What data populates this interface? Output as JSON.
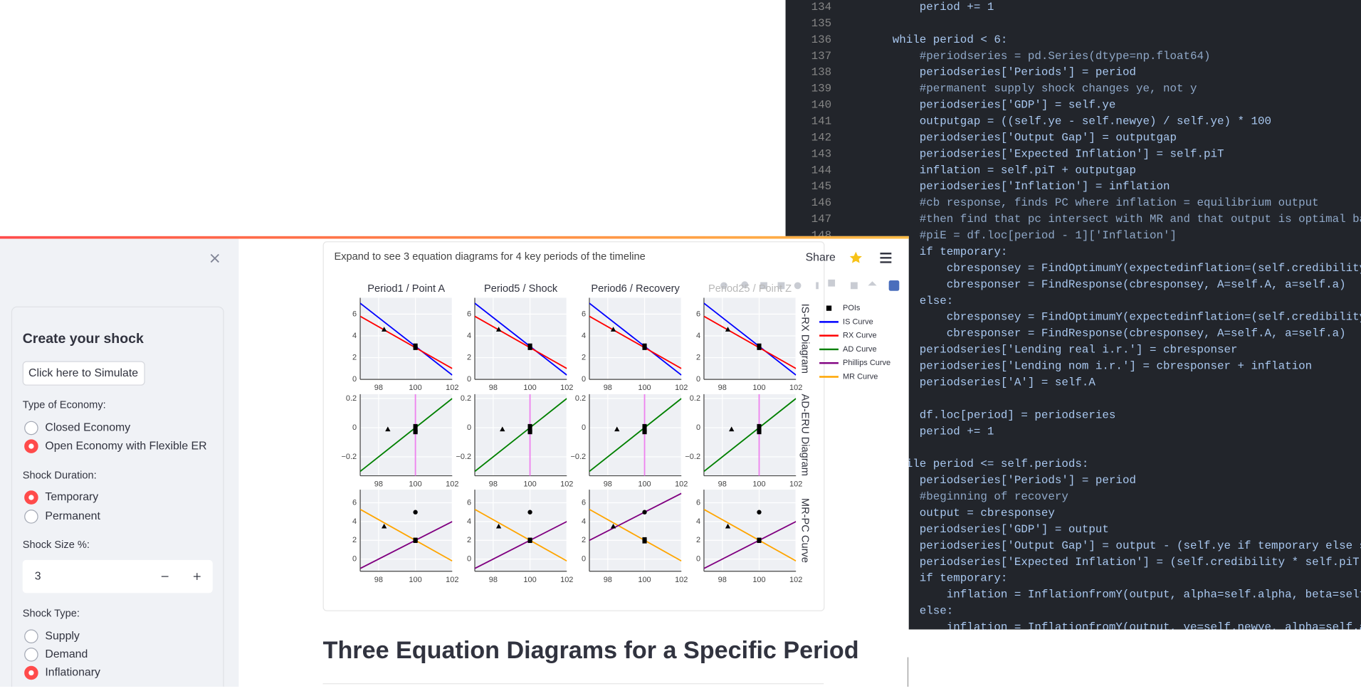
{
  "editor": {
    "line_numbers": [
      134,
      135,
      136,
      137,
      138,
      139,
      140,
      141,
      142,
      143,
      144,
      145,
      146,
      147,
      148
    ],
    "lines": [
      "        period += 1",
      null,
      "    while period < 6:",
      "        #periodseries = pd.Series(dtype=np.float64)",
      "        periodseries['Periods'] = period",
      "        #permanent supply shock changes ye, not y",
      "        periodseries['GDP'] = self.ye",
      "        outputgap = ((self.ye - self.newye) / self.ye) * 100",
      "        periodseries['Output Gap'] = outputgap",
      "        periodseries['Expected Inflation'] = self.piT",
      "        inflation = self.piT + outputgap",
      "        periodseries['Inflation'] = inflation",
      "        #cb response, finds PC where inflation = equilibrium output",
      "        #then find that pc intersect with MR and that output is optimal bar",
      "        #piE = df.loc[period - 1]['Inflation']",
      "        if temporary:",
      "            cbresponsey = FindOptimumY(expectedinflation=(self.credibility",
      "            cbresponser = FindResponse(cbresponsey, A=self.A, a=self.a)",
      "        else:",
      "            cbresponsey = FindOptimumY(expectedinflation=(self.credibility",
      "            cbresponser = FindResponse(cbresponsey, A=self.A, a=self.a)",
      "        periodseries['Lending real i.r.'] = cbresponser",
      "        periodseries['Lending nom i.r.'] = cbresponser + inflation",
      "        periodseries['A'] = self.A",
      null,
      "        df.loc[period] = periodseries",
      "        period += 1",
      null,
      "    while period <= self.periods:",
      "        periodseries['Periods'] = period",
      "        #beginning of recovery",
      "        output = cbresponsey",
      "        periodseries['GDP'] = output",
      "        periodseries['Output Gap'] = output - (self.ye if temporary else se",
      "        periodseries['Expected Inflation'] = (self.credibility * self.piT)",
      "        if temporary:",
      "            inflation = InflationfromY(output, alpha=self.alpha, beta=self.",
      "        else:",
      "            inflation = InflationfromY(output, ye=self.newye, alpha=self.al"
    ]
  },
  "sidebar": {
    "title": "Create your shock",
    "button": "Click here to Simulate",
    "economy": {
      "label": "Type of Economy:",
      "options": [
        "Closed Economy",
        "Open Economy with Flexible ER"
      ],
      "selected": 1
    },
    "duration": {
      "label": "Shock Duration:",
      "options": [
        "Temporary",
        "Permanent"
      ],
      "selected": 0
    },
    "size": {
      "label": "Shock Size %:",
      "value": 3
    },
    "shock_type": {
      "label": "Shock Type:",
      "options": [
        "Supply",
        "Demand",
        "Inflationary"
      ],
      "selected": 2
    }
  },
  "main": {
    "expander": "Expand to see 3 equation diagrams for 4 key periods of the timeline",
    "share": "Share",
    "heading": "Three Equation Diagrams for a Specific Period"
  },
  "figure": {
    "subplot_titles": [
      "Period1 / Point A",
      "Period5 / Shock",
      "Period6 / Recovery",
      "Period25 / Point Z"
    ],
    "xlim": [
      97,
      102
    ],
    "xticks": [
      98,
      100,
      102
    ],
    "legend": [
      {
        "name": "POIs",
        "color": "#000000",
        "symbol": "square"
      },
      {
        "name": "IS Curve",
        "color": "#0000ff"
      },
      {
        "name": "RX Curve",
        "color": "#ff0000"
      },
      {
        "name": "AD Curve",
        "color": "#008000"
      },
      {
        "name": "Phillips Curve",
        "color": "#800080"
      },
      {
        "name": "MR Curve",
        "color": "#ffa500"
      }
    ],
    "rows": [
      {
        "title": "IS-RX Diagram",
        "ylim": [
          0,
          7.5
        ],
        "yticks": [
          0,
          2,
          4,
          6
        ],
        "panels": [
          {
            "lines": [
              {
                "color": "#0000ff",
                "x": [
                  97,
                  102
                ],
                "y": [
                  7,
                  0.4
                ]
              },
              {
                "color": "#ff0000",
                "x": [
                  97,
                  102
                ],
                "y": [
                  5.8,
                  1
                ]
              }
            ],
            "points": [
              {
                "symbol": "triangle",
                "x": [
                  98.3
                ],
                "y": [
                  4.6
                ]
              },
              {
                "symbol": "square",
                "x": [
                  100,
                  100
                ],
                "y": [
                  3.1,
                  2.9
                ]
              }
            ]
          },
          {
            "lines": [
              {
                "color": "#0000ff",
                "x": [
                  97,
                  102
                ],
                "y": [
                  7,
                  0.4
                ]
              },
              {
                "color": "#ff0000",
                "x": [
                  97,
                  102
                ],
                "y": [
                  5.8,
                  1
                ]
              }
            ],
            "points": [
              {
                "symbol": "triangle",
                "x": [
                  98.3
                ],
                "y": [
                  4.6
                ]
              },
              {
                "symbol": "square",
                "x": [
                  100,
                  100
                ],
                "y": [
                  3.1,
                  2.9
                ]
              }
            ]
          },
          {
            "lines": [
              {
                "color": "#0000ff",
                "x": [
                  97,
                  102
                ],
                "y": [
                  7,
                  0.4
                ]
              },
              {
                "color": "#ff0000",
                "x": [
                  97,
                  102
                ],
                "y": [
                  5.8,
                  1
                ]
              }
            ],
            "points": [
              {
                "symbol": "triangle",
                "x": [
                  98.3
                ],
                "y": [
                  4.6
                ]
              },
              {
                "symbol": "square",
                "x": [
                  100,
                  100
                ],
                "y": [
                  3.1,
                  2.9
                ]
              }
            ]
          },
          {
            "lines": [
              {
                "color": "#0000ff",
                "x": [
                  97,
                  102
                ],
                "y": [
                  7,
                  0.4
                ]
              },
              {
                "color": "#ff0000",
                "x": [
                  97,
                  102
                ],
                "y": [
                  5.8,
                  1
                ]
              }
            ],
            "points": [
              {
                "symbol": "triangle",
                "x": [
                  98.3
                ],
                "y": [
                  4.6
                ]
              },
              {
                "symbol": "square",
                "x": [
                  100,
                  100
                ],
                "y": [
                  3.1,
                  2.9
                ]
              }
            ]
          }
        ]
      },
      {
        "title": "AD-ERU Diagram",
        "ylim": [
          -0.33,
          0.23
        ],
        "yticks": [
          {
            "value": -0.2,
            "label": "−0.2"
          },
          0,
          0.2
        ],
        "panels": [
          {
            "lines": [
              {
                "color": "#ee82ee",
                "x": [
                  100,
                  100
                ],
                "y": [
                  -0.33,
                  0.23
                ]
              },
              {
                "color": "#008000",
                "x": [
                  97,
                  102
                ],
                "y": [
                  -0.3,
                  0.2
                ]
              }
            ],
            "points": [
              {
                "symbol": "triangle",
                "x": [
                  98.5
                ],
                "y": [
                  -0.01
                ]
              },
              {
                "symbol": "square",
                "x": [
                  100,
                  100,
                  100
                ],
                "y": [
                  0.01,
                  -0.02,
                  -0.03
                ]
              }
            ]
          },
          {
            "lines": [
              {
                "color": "#ee82ee",
                "x": [
                  100,
                  100
                ],
                "y": [
                  -0.33,
                  0.23
                ]
              },
              {
                "color": "#008000",
                "x": [
                  97,
                  102
                ],
                "y": [
                  -0.3,
                  0.2
                ]
              }
            ],
            "points": [
              {
                "symbol": "triangle",
                "x": [
                  98.5
                ],
                "y": [
                  -0.01
                ]
              },
              {
                "symbol": "square",
                "x": [
                  100,
                  100,
                  100
                ],
                "y": [
                  0.01,
                  -0.02,
                  -0.03
                ]
              }
            ]
          },
          {
            "lines": [
              {
                "color": "#ee82ee",
                "x": [
                  100,
                  100
                ],
                "y": [
                  -0.33,
                  0.23
                ]
              },
              {
                "color": "#008000",
                "x": [
                  97,
                  102
                ],
                "y": [
                  -0.3,
                  0.2
                ]
              }
            ],
            "points": [
              {
                "symbol": "triangle",
                "x": [
                  98.5
                ],
                "y": [
                  -0.01
                ]
              },
              {
                "symbol": "square",
                "x": [
                  100,
                  100,
                  100
                ],
                "y": [
                  0.01,
                  -0.02,
                  -0.03
                ]
              }
            ]
          },
          {
            "lines": [
              {
                "color": "#ee82ee",
                "x": [
                  100,
                  100
                ],
                "y": [
                  -0.33,
                  0.23
                ]
              },
              {
                "color": "#008000",
                "x": [
                  97,
                  102
                ],
                "y": [
                  -0.3,
                  0.2
                ]
              }
            ],
            "points": [
              {
                "symbol": "triangle",
                "x": [
                  98.5
                ],
                "y": [
                  -0.01
                ]
              },
              {
                "symbol": "square",
                "x": [
                  100,
                  100,
                  100
                ],
                "y": [
                  0.01,
                  -0.02,
                  -0.03
                ]
              }
            ]
          }
        ]
      },
      {
        "title": "MR-PC Curve",
        "ylim": [
          -1.3,
          7.4
        ],
        "yticks": [
          0,
          2,
          4,
          6
        ],
        "panels": [
          {
            "lines": [
              {
                "color": "#ffa500",
                "x": [
                  97,
                  102
                ],
                "y": [
                  5.3,
                  -0.2
                ]
              },
              {
                "color": "#800080",
                "x": [
                  97,
                  102
                ],
                "y": [
                  -1,
                  4
                ]
              }
            ],
            "points": [
              {
                "symbol": "triangle",
                "x": [
                  98.3
                ],
                "y": [
                  3.5
                ]
              },
              {
                "symbol": "circle",
                "x": [
                  100
                ],
                "y": [
                  5
                ]
              },
              {
                "symbol": "square",
                "x": [
                  100,
                  100
                ],
                "y": [
                  2.05,
                  1.95
                ]
              }
            ]
          },
          {
            "lines": [
              {
                "color": "#ffa500",
                "x": [
                  97,
                  102
                ],
                "y": [
                  5.3,
                  -0.2
                ]
              },
              {
                "color": "#800080",
                "x": [
                  97,
                  102
                ],
                "y": [
                  -1,
                  4
                ]
              }
            ],
            "points": [
              {
                "symbol": "triangle",
                "x": [
                  98.3
                ],
                "y": [
                  3.5
                ]
              },
              {
                "symbol": "circle",
                "x": [
                  100
                ],
                "y": [
                  5
                ]
              },
              {
                "symbol": "square",
                "x": [
                  100,
                  100
                ],
                "y": [
                  2.05,
                  1.95
                ]
              }
            ]
          },
          {
            "lines": [
              {
                "color": "#ffa500",
                "x": [
                  97,
                  102
                ],
                "y": [
                  5.3,
                  -0.2
                ]
              },
              {
                "color": "#800080",
                "x": [
                  97,
                  102
                ],
                "y": [
                  2,
                  7
                ]
              }
            ],
            "points": [
              {
                "symbol": "triangle",
                "x": [
                  98.3
                ],
                "y": [
                  3.5
                ]
              },
              {
                "symbol": "circle",
                "x": [
                  100
                ],
                "y": [
                  5
                ]
              },
              {
                "symbol": "square",
                "x": [
                  100,
                  100
                ],
                "y": [
                  2.1,
                  1.9
                ]
              }
            ]
          },
          {
            "lines": [
              {
                "color": "#ffa500",
                "x": [
                  97,
                  102
                ],
                "y": [
                  5.3,
                  -0.2
                ]
              },
              {
                "color": "#800080",
                "x": [
                  97,
                  102
                ],
                "y": [
                  -1,
                  4
                ]
              }
            ],
            "points": [
              {
                "symbol": "triangle",
                "x": [
                  98.3
                ],
                "y": [
                  3.5
                ]
              },
              {
                "symbol": "circle",
                "x": [
                  100
                ],
                "y": [
                  5
                ]
              },
              {
                "symbol": "square",
                "x": [
                  100,
                  100
                ],
                "y": [
                  2.05,
                  1.95
                ]
              }
            ]
          }
        ]
      }
    ]
  }
}
